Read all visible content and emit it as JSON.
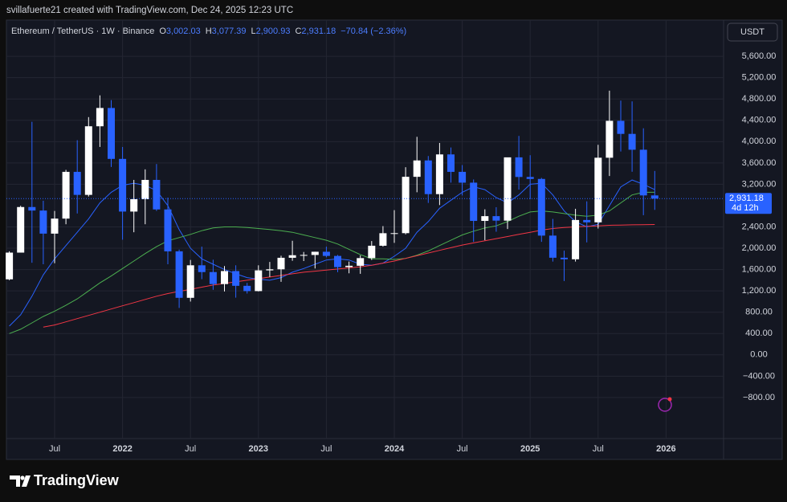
{
  "header": "svillafuerte21 created with TradingView.com, Dec 24, 2025 12:23 UTC",
  "logo": "TradingView",
  "chart_data": {
    "type": "candlestick",
    "legend": {
      "symbol": "Ethereum / TetherUS · 1W · Binance",
      "o_key": "O",
      "o": "3,002.03",
      "h_key": "H",
      "h": "3,077.39",
      "l_key": "L",
      "l": "2,900.93",
      "c_key": "C",
      "c": "2,931.18",
      "change": "−70.84 (−2.36%)"
    },
    "currency": "USDT",
    "last_price": {
      "value": 2931.18,
      "label": "2,931.18"
    },
    "countdown": "4d 12h",
    "up_color": "#ffffff",
    "down_color": "#2962ff",
    "grid": true,
    "categories": [
      null,
      null,
      null,
      null,
      "Jul",
      null,
      null,
      null,
      null,
      null,
      "2022",
      null,
      null,
      null,
      null,
      null,
      "Jul",
      null,
      null,
      null,
      null,
      null,
      "2023",
      null,
      null,
      null,
      null,
      null,
      "Jul",
      null,
      null,
      null,
      null,
      null,
      "2024",
      null,
      null,
      null,
      null,
      null,
      "Jul",
      null,
      null,
      null,
      null,
      null,
      "2025",
      null,
      null,
      null,
      null,
      null,
      "Jul",
      null,
      null,
      null,
      null,
      null,
      "2026"
    ],
    "open": [
      1417,
      1918,
      2773,
      2707,
      2274,
      2556,
      3433,
      3001,
      4288,
      4631,
      3676,
      2688,
      2920,
      3282,
      2728,
      1942,
      1070,
      1680,
      1553,
      1328,
      1572,
      1295,
      1196,
      1585,
      1605,
      1821,
      1869,
      1874,
      1934,
      1856,
      1646,
      1671,
      1815,
      2047,
      2282,
      2283,
      3340,
      3647,
      3015,
      3760,
      3433,
      3230,
      2513,
      2602,
      2518,
      3705,
      3337,
      3300,
      2237,
      1822,
      1793,
      2530,
      2486,
      3698,
      4390,
      4145,
      3848,
      2991,
      null
    ],
    "high": [
      1943,
      2797,
      4372,
      2891,
      2700,
      3470,
      4027,
      4460,
      4868,
      4778,
      3900,
      3282,
      3480,
      3580,
      2950,
      1975,
      1780,
      2030,
      1785,
      1665,
      1680,
      1350,
      1680,
      1743,
      1860,
      2140,
      1930,
      1935,
      2030,
      1875,
      1750,
      1865,
      2135,
      2415,
      2715,
      3520,
      4090,
      3730,
      3975,
      3890,
      3560,
      3290,
      2730,
      2770,
      3700,
      4107,
      3745,
      3320,
      2550,
      1955,
      2740,
      2880,
      3940,
      4956,
      4770,
      4755,
      4250,
      3450,
      null
    ],
    "low": [
      1400,
      1930,
      1728,
      1700,
      1718,
      2450,
      2652,
      2970,
      3900,
      3525,
      2160,
      2300,
      2450,
      2700,
      1700,
      880,
      1000,
      1420,
      1220,
      1190,
      1073,
      1150,
      1190,
      1460,
      1370,
      1765,
      1760,
      1620,
      1830,
      1550,
      1530,
      1520,
      1780,
      2030,
      2100,
      2260,
      3050,
      2850,
      2810,
      3230,
      2990,
      2120,
      2150,
      2310,
      2360,
      3100,
      2920,
      2120,
      1750,
      1385,
      1750,
      2110,
      2370,
      3355,
      3815,
      3435,
      2620,
      2720,
      null
    ],
    "close": [
      1918,
      2773,
      2707,
      2274,
      2556,
      3433,
      3001,
      4288,
      4631,
      3676,
      2688,
      2920,
      3282,
      2728,
      1942,
      1070,
      1680,
      1553,
      1328,
      1572,
      1295,
      1196,
      1585,
      1605,
      1821,
      1869,
      1874,
      1934,
      1856,
      1646,
      1671,
      1815,
      2047,
      2282,
      2283,
      3340,
      3647,
      3015,
      3760,
      3433,
      3230,
      2513,
      2602,
      2518,
      3705,
      3337,
      3300,
      2237,
      1822,
      1793,
      2530,
      2486,
      3698,
      4390,
      4145,
      3848,
      2991,
      2931.18,
      null
    ],
    "overlays": [
      {
        "color": "#2962ff",
        "values": [
          540,
          750,
          1100,
          1500,
          1800,
          2050,
          2300,
          2550,
          2850,
          3050,
          3180,
          3220,
          3180,
          3080,
          2800,
          2350,
          2000,
          1800,
          1700,
          1600,
          1520,
          1450,
          1420,
          1400,
          1450,
          1550,
          1620,
          1700,
          1780,
          1800,
          1780,
          1700,
          1680,
          1720,
          1850,
          2000,
          2300,
          2500,
          2750,
          2900,
          3050,
          3150,
          3100,
          2950,
          2850,
          3000,
          3200,
          3220,
          3000,
          2700,
          2500,
          2400,
          2450,
          2800,
          3150,
          3280,
          3200,
          3100,
          null
        ]
      },
      {
        "color": "#4caf50",
        "values": [
          400,
          480,
          600,
          720,
          820,
          930,
          1050,
          1200,
          1350,
          1480,
          1620,
          1760,
          1900,
          2030,
          2140,
          2200,
          2260,
          2330,
          2380,
          2400,
          2400,
          2390,
          2370,
          2350,
          2330,
          2300,
          2250,
          2200,
          2150,
          2080,
          1980,
          1880,
          1800,
          1800,
          1790,
          1810,
          1870,
          1950,
          2050,
          2150,
          2250,
          2320,
          2380,
          2420,
          2500,
          2600,
          2680,
          2700,
          2680,
          2650,
          2620,
          2600,
          2620,
          2700,
          2850,
          3000,
          3050,
          3050,
          null
        ]
      },
      {
        "color": "#f23645",
        "values": [
          null,
          null,
          null,
          520,
          560,
          620,
          680,
          740,
          800,
          860,
          920,
          980,
          1040,
          1100,
          1150,
          1190,
          1230,
          1270,
          1310,
          1340,
          1370,
          1400,
          1430,
          1460,
          1490,
          1520,
          1550,
          1570,
          1590,
          1610,
          1630,
          1650,
          1680,
          1720,
          1760,
          1810,
          1860,
          1910,
          1960,
          2010,
          2060,
          2100,
          2140,
          2180,
          2220,
          2260,
          2300,
          2340,
          2370,
          2390,
          2400,
          2410,
          2420,
          2430,
          2435,
          2440,
          2443,
          2445,
          null
        ]
      }
    ],
    "ylim": [
      -1570,
      6280
    ],
    "yticks": [
      {
        "value": -800,
        "label": "−800.00"
      },
      {
        "value": -400,
        "label": "−400.00"
      },
      {
        "value": 0,
        "label": "0.00"
      },
      {
        "value": 400,
        "label": "400.00"
      },
      {
        "value": 800,
        "label": "800.00"
      },
      {
        "value": 1200,
        "label": "1,200.00"
      },
      {
        "value": 1600,
        "label": "1,600.00"
      },
      {
        "value": 2000,
        "label": "2,000.00"
      },
      {
        "value": 2400,
        "label": "2,400.00"
      },
      {
        "value": 3200,
        "label": "3,200.00"
      },
      {
        "value": 3600,
        "label": "3,600.00"
      },
      {
        "value": 4000,
        "label": "4,000.00"
      },
      {
        "value": 4400,
        "label": "4,400.00"
      },
      {
        "value": 4800,
        "label": "4,800.00"
      },
      {
        "value": 5200,
        "label": "5,200.00"
      },
      {
        "value": 5600,
        "label": "5,600.00"
      }
    ]
  }
}
